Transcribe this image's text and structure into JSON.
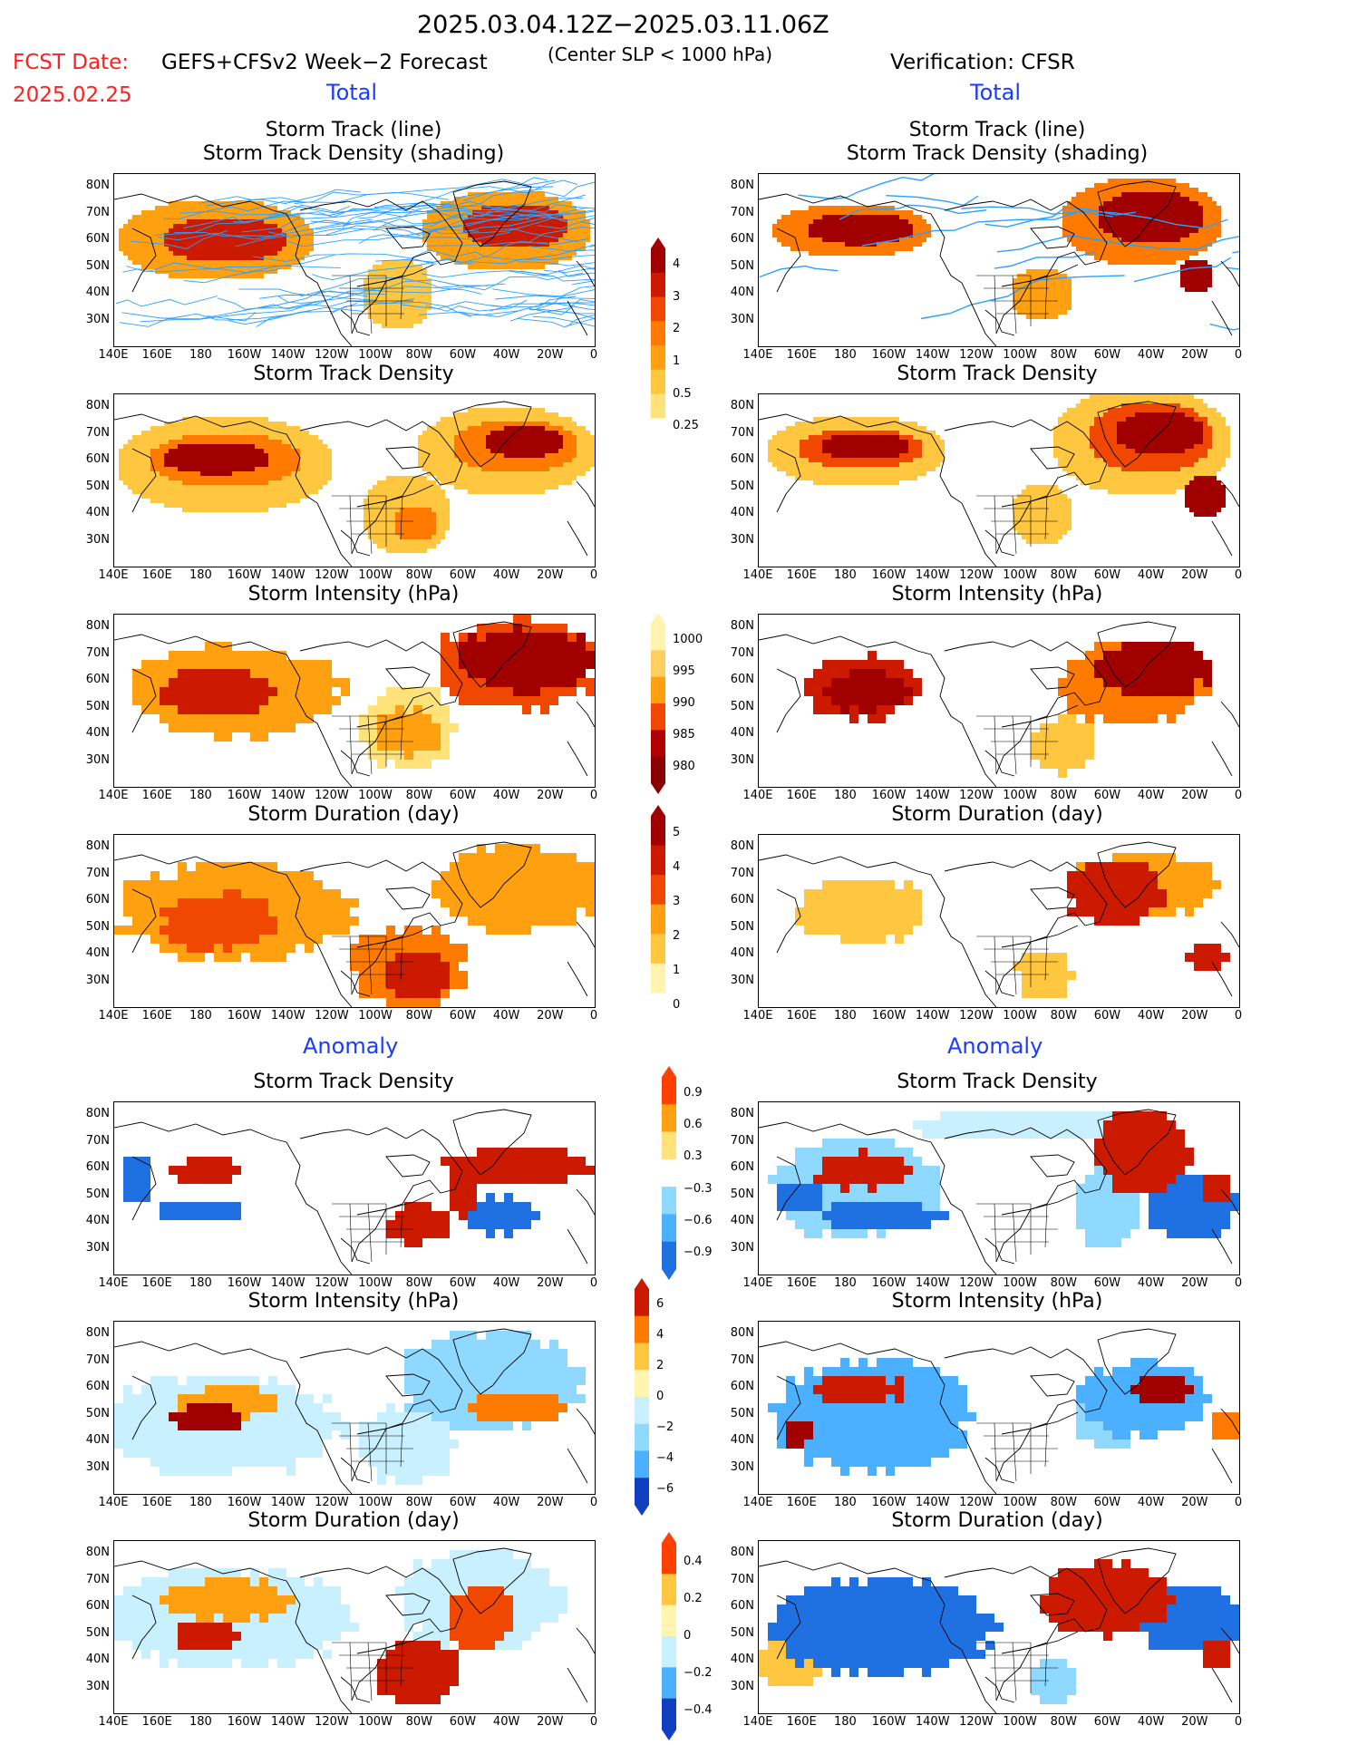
{
  "header": {
    "date_range": "2025.03.04.12Z−2025.03.11.06Z",
    "fcst_date_label": "FCST Date:",
    "fcst_date_value": "2025.02.25",
    "forecast_title": "GEFS+CFSv2 Week−2 Forecast",
    "center_slp": "(Center SLP < 1000 hPa)",
    "verification": "Verification: CFSR",
    "total_left": "Total",
    "total_right": "Total",
    "anomaly_left": "Anomaly",
    "anomaly_right": "Anomaly"
  },
  "panels": {
    "track_line_1": "Storm Track (line)",
    "track_line_2": "Storm Track Density (shading)",
    "track_density": "Storm Track Density",
    "intensity": "Storm Intensity (hPa)",
    "duration": "Storm Duration (day)"
  },
  "axes": {
    "lat_labels": [
      "80N",
      "70N",
      "60N",
      "50N",
      "40N",
      "30N"
    ],
    "lon_labels": [
      "140E",
      "160E",
      "180",
      "160W",
      "140W",
      "120W",
      "100W",
      "80W",
      "60W",
      "40W",
      "20W",
      "0"
    ]
  },
  "colorbars": {
    "density_total": [
      "4",
      "3",
      "2",
      "1",
      "0.5",
      "0.25"
    ],
    "intensity_total": [
      "1000",
      "995",
      "990",
      "985",
      "980"
    ],
    "duration_total": [
      "5",
      "4",
      "3",
      "2",
      "1",
      "0"
    ],
    "density_anom": [
      "0.9",
      "0.6",
      "0.3",
      "−0.3",
      "−0.6",
      "−0.9"
    ],
    "intensity_anom": [
      "6",
      "4",
      "2",
      "0",
      "−2",
      "−4",
      "−6"
    ],
    "duration_anom": [
      "0.4",
      "0.2",
      "0",
      "−0.2",
      "−0.4"
    ]
  },
  "colors": {
    "title_red": "#ff2020",
    "title_blue": "#1a3cff",
    "warm": [
      "#fff5b0",
      "#ffe27a",
      "#ffc640",
      "#ffa010",
      "#ff7a00",
      "#f04800",
      "#cc1a00",
      "#a00000"
    ],
    "cold": [
      "#c8f0ff",
      "#8fd8ff",
      "#4ab0ff",
      "#1f70e0",
      "#1040c0"
    ],
    "track_line": "#2aa0ff"
  }
}
